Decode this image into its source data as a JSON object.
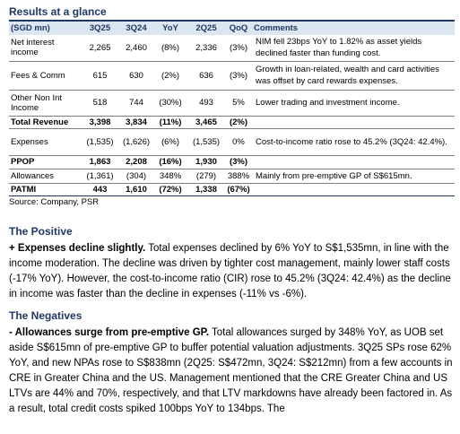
{
  "title": "Results at a glance",
  "table": {
    "headers": [
      "(SGD mn)",
      "3Q25",
      "3Q24",
      "YoY",
      "2Q25",
      "QoQ",
      "Comments"
    ],
    "rows": [
      {
        "label": "Net interest income",
        "q325": "2,265",
        "q324": "2,460",
        "yoy": "(8%)",
        "q225": "2,336",
        "qoq": "(3%)",
        "comment": "NIM fell 23bps YoY to 1.82% as asset yields declined faster than funding cost.",
        "bold": false
      },
      {
        "label": "Fees & Comm",
        "q325": "615",
        "q324": "630",
        "yoy": "(2%)",
        "q225": "636",
        "qoq": "(3%)",
        "comment": "Growth in loan-related, wealth and card activities was offset by card rewards expenses.",
        "bold": false
      },
      {
        "label": "Other Non Int Income",
        "q325": "518",
        "q324": "744",
        "yoy": "(30%)",
        "q225": "493",
        "qoq": "5%",
        "comment": "Lower trading and investment income.",
        "bold": false
      },
      {
        "label": "Total Revenue",
        "q325": "3,398",
        "q324": "3,834",
        "yoy": "(11%)",
        "q225": "3,465",
        "qoq": "(2%)",
        "comment": "",
        "bold": true
      },
      {
        "label": "Expenses",
        "q325": "(1,535)",
        "q324": "(1,626)",
        "yoy": "(6%)",
        "q225": "(1,535)",
        "qoq": "0%",
        "comment": "Cost-to-income ratio rose to 45.2% (3Q24: 42.4%).",
        "bold": false
      },
      {
        "label": "PPOP",
        "q325": "1,863",
        "q324": "2,208",
        "yoy": "(16%)",
        "q225": "1,930",
        "qoq": "(3%)",
        "comment": "",
        "bold": true
      },
      {
        "label": "Allowances",
        "q325": "(1,361)",
        "q324": "(304)",
        "yoy": "348%",
        "q225": "(279)",
        "qoq": "388%",
        "comment": "Mainly from pre-emptive GP of S$615mn.",
        "bold": false
      },
      {
        "label": "PATMI",
        "q325": "443",
        "q324": "1,610",
        "yoy": "(72%)",
        "q225": "1,338",
        "qoq": "(67%)",
        "comment": "",
        "bold": true
      }
    ]
  },
  "source": "Source: Company, PSR",
  "positive": {
    "heading": "The Positive",
    "lead": "+ Expenses decline slightly.",
    "text": " Total expenses declined by 6% YoY to S$1,535mn, in line with the income moderation. The decline was driven by tighter cost management, mainly lower staff costs (-17% YoY). However, the cost-to-income ratio (CIR) rose to 45.2% (3Q24: 42.4%) as the decline in income was faster than the decline in expenses (-11% vs -6%)."
  },
  "negative": {
    "heading": "The Negatives",
    "lead": "- Allowances surge from pre-emptive GP.",
    "text": " Total allowances surged by 348% YoY, as UOB set aside S$615mn of pre-emptive GP to buffer potential valuation adjustments. 3Q25 SPs rose 62% YoY, and new NPAs rose to S$838mn (2Q25: S$472mn, 3Q24: S$212mn) from a few accounts in CRE in Greater China and the US. Management mentioned that the CRE Greater China and US LTVs are 44% and 70%, respectively, and that LTV markdowns have already been factored in. As a result, total credit costs spiked 100bps YoY to 134bps. The"
  }
}
